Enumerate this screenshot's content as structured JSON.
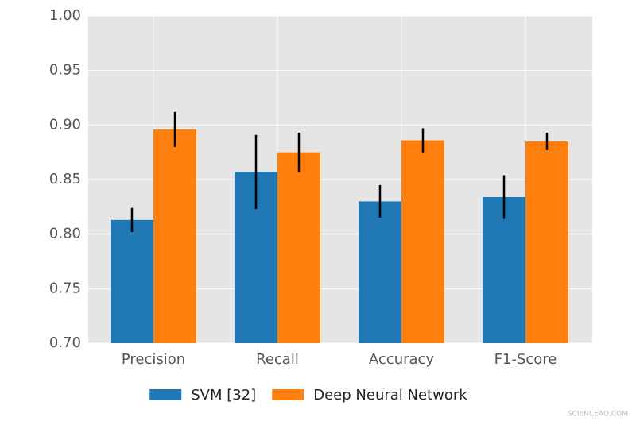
{
  "chart_data": {
    "type": "bar",
    "categories": [
      "Precision",
      "Recall",
      "Accuracy",
      "F1-Score"
    ],
    "series": [
      {
        "name": "SVM [32]",
        "color": "#1f77b4",
        "values": [
          0.813,
          0.857,
          0.83,
          0.834
        ],
        "errors": [
          0.011,
          0.034,
          0.015,
          0.02
        ]
      },
      {
        "name": "Deep Neural Network",
        "color": "#ff7f0e",
        "values": [
          0.896,
          0.875,
          0.886,
          0.885
        ],
        "errors": [
          0.016,
          0.018,
          0.011,
          0.008
        ]
      }
    ],
    "ylim": [
      0.7,
      1.0
    ],
    "yticks": [
      {
        "value": 0.7,
        "label": "0.70"
      },
      {
        "value": 0.75,
        "label": "0.75"
      },
      {
        "value": 0.8,
        "label": "0.80"
      },
      {
        "value": 0.85,
        "label": "0.85"
      },
      {
        "value": 0.9,
        "label": "0.90"
      },
      {
        "value": 0.95,
        "label": "0.95"
      },
      {
        "value": 1.0,
        "label": "1.00"
      }
    ],
    "grid": true,
    "legend": "bottom",
    "watermark": "SCIENCEAQ.COM"
  }
}
